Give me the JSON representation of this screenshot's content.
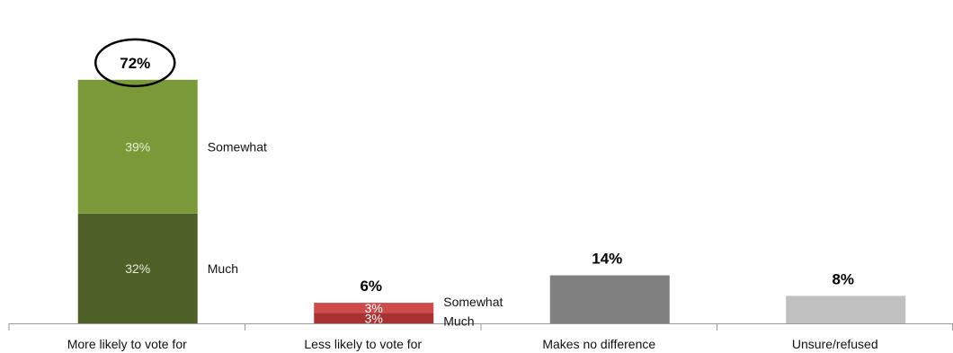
{
  "chart_data": {
    "type": "bar",
    "stacked": true,
    "categories": [
      "More likely to vote for",
      "Less likely to vote for",
      "Makes no difference",
      "Unsure/refused"
    ],
    "series": [
      {
        "name": "Much",
        "values": [
          32,
          3,
          14,
          8
        ]
      },
      {
        "name": "Somewhat",
        "values": [
          39,
          3,
          0,
          0
        ]
      }
    ],
    "totals": [
      "72%",
      "6%",
      "14%",
      "8%"
    ],
    "segment_labels": {
      "Much": [
        "32%",
        "3%",
        "",
        ""
      ],
      "Somewhat": [
        "39%",
        "3%",
        "",
        ""
      ]
    },
    "side_labels": {
      "Much": [
        "Much",
        "Much",
        "",
        ""
      ],
      "Somewhat": [
        "Somewhat",
        "Somewhat",
        "",
        ""
      ]
    },
    "highlighted_total_index": 0,
    "colors": {
      "Much": [
        "#4e5f27",
        "#a83232",
        "#808080",
        "#c0c0c0"
      ],
      "Somewhat": [
        "#7a9a3a",
        "#cc4c4c",
        "#808080",
        "#c0c0c0"
      ],
      "segment_label_text": [
        "#e6ecd6",
        "#ffffff",
        "#ffffff",
        "#ffffff"
      ]
    },
    "ylim": [
      0,
      76
    ],
    "grid": false,
    "legend": "none"
  }
}
